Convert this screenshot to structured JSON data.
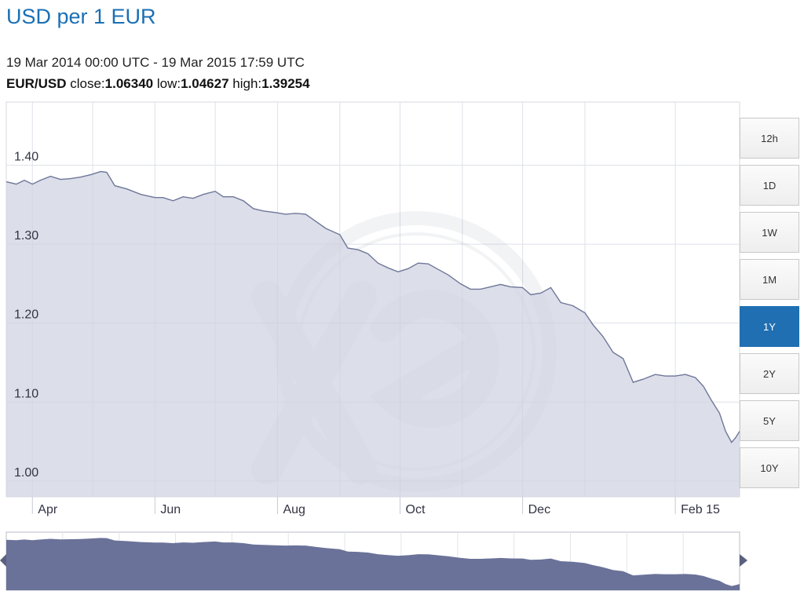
{
  "title": "USD per 1 EUR",
  "date_range": "19 Mar 2014 00:00 UTC - 19 Mar 2015 17:59 UTC",
  "stats": {
    "pair": "EUR/USD",
    "close_label": " close:",
    "close_value": "1.06340",
    "low_label": " low:",
    "low_value": "1.04627",
    "high_label": " high:",
    "high_value": "1.39254"
  },
  "range_buttons": [
    "12h",
    "1D",
    "1W",
    "1M",
    "1Y",
    "2Y",
    "5Y",
    "10Y"
  ],
  "active_range": "1Y",
  "colors": {
    "title": "#1a6fb5",
    "line": "#6e7799",
    "fill": "#d0d3e2",
    "navigator": "#6b7299",
    "active_button": "#1f6fb2"
  },
  "chart_data": {
    "type": "area",
    "ylim": [
      0.98,
      1.48
    ],
    "yticks": [
      {
        "v": 1.0,
        "label": "1.00"
      },
      {
        "v": 1.1,
        "label": "1.10"
      },
      {
        "v": 1.2,
        "label": "1.20"
      },
      {
        "v": 1.3,
        "label": "1.30"
      },
      {
        "v": 1.4,
        "label": "1.40"
      }
    ],
    "xlim": [
      "2014-03-19",
      "2015-03-19"
    ],
    "xticks": [
      {
        "date": "2014-04-01",
        "label": "Apr"
      },
      {
        "date": "2014-06-01",
        "label": "Jun"
      },
      {
        "date": "2014-08-01",
        "label": "Aug"
      },
      {
        "date": "2014-10-01",
        "label": "Oct"
      },
      {
        "date": "2014-12-01",
        "label": "Dec"
      },
      {
        "date": "2015-02-15",
        "label": "Feb 15"
      }
    ],
    "grid": true,
    "x": [
      "2014-03-19",
      "2014-03-24",
      "2014-03-28",
      "2014-04-01",
      "2014-04-05",
      "2014-04-10",
      "2014-04-15",
      "2014-04-20",
      "2014-04-25",
      "2014-04-30",
      "2014-05-05",
      "2014-05-08",
      "2014-05-12",
      "2014-05-18",
      "2014-05-25",
      "2014-06-01",
      "2014-06-05",
      "2014-06-10",
      "2014-06-15",
      "2014-06-20",
      "2014-06-25",
      "2014-07-01",
      "2014-07-05",
      "2014-07-10",
      "2014-07-15",
      "2014-07-20",
      "2014-07-25",
      "2014-07-31",
      "2014-08-05",
      "2014-08-10",
      "2014-08-15",
      "2014-08-20",
      "2014-08-25",
      "2014-09-01",
      "2014-09-05",
      "2014-09-10",
      "2014-09-15",
      "2014-09-20",
      "2014-09-25",
      "2014-09-30",
      "2014-10-05",
      "2014-10-10",
      "2014-10-15",
      "2014-10-20",
      "2014-10-25",
      "2014-10-31",
      "2014-11-05",
      "2014-11-10",
      "2014-11-15",
      "2014-11-20",
      "2014-11-25",
      "2014-12-01",
      "2014-12-05",
      "2014-12-10",
      "2014-12-15",
      "2014-12-20",
      "2014-12-26",
      "2015-01-01",
      "2015-01-05",
      "2015-01-10",
      "2015-01-15",
      "2015-01-20",
      "2015-01-25",
      "2015-01-30",
      "2015-02-05",
      "2015-02-10",
      "2015-02-15",
      "2015-02-20",
      "2015-02-25",
      "2015-03-01",
      "2015-03-05",
      "2015-03-09",
      "2015-03-12",
      "2015-03-15",
      "2015-03-17",
      "2015-03-19"
    ],
    "y": [
      1.379,
      1.376,
      1.381,
      1.376,
      1.381,
      1.386,
      1.382,
      1.383,
      1.385,
      1.388,
      1.392,
      1.391,
      1.374,
      1.37,
      1.363,
      1.359,
      1.359,
      1.355,
      1.36,
      1.358,
      1.363,
      1.367,
      1.36,
      1.36,
      1.355,
      1.345,
      1.342,
      1.34,
      1.338,
      1.339,
      1.338,
      1.329,
      1.32,
      1.312,
      1.295,
      1.293,
      1.288,
      1.276,
      1.27,
      1.265,
      1.269,
      1.276,
      1.275,
      1.268,
      1.261,
      1.25,
      1.243,
      1.243,
      1.246,
      1.249,
      1.246,
      1.245,
      1.236,
      1.238,
      1.245,
      1.226,
      1.222,
      1.213,
      1.198,
      1.183,
      1.163,
      1.155,
      1.125,
      1.129,
      1.135,
      1.133,
      1.133,
      1.135,
      1.131,
      1.12,
      1.102,
      1.086,
      1.063,
      1.049,
      1.055,
      1.063
    ]
  }
}
